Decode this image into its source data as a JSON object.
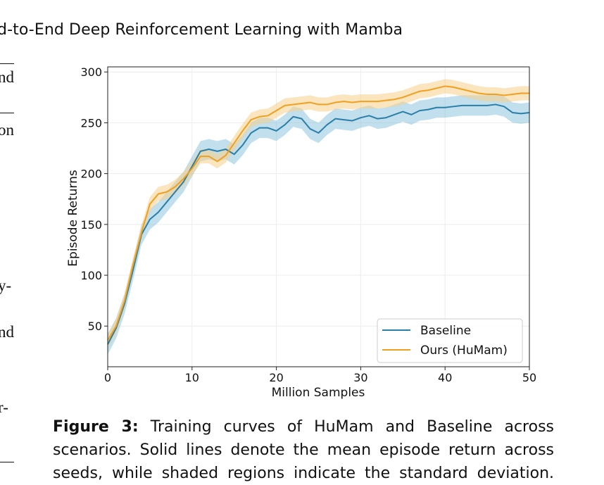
{
  "header": {
    "title": "d-to-End Deep Reinforcement Learning with Mamba"
  },
  "left_column_fragments": [
    "nd",
    "on",
    "y-",
    "nd",
    "r-"
  ],
  "chart_data": {
    "type": "line",
    "xlabel": "Million Samples",
    "ylabel": "Episode Returns",
    "xlim": [
      0,
      50
    ],
    "ylim": [
      10,
      305
    ],
    "xticks": [
      "0",
      "10",
      "20",
      "30",
      "40",
      "50"
    ],
    "yticks": [
      "50",
      "100",
      "150",
      "200",
      "250",
      "300"
    ],
    "grid": true,
    "legend_position": "lower-right",
    "x": [
      0,
      1,
      2,
      3,
      4,
      5,
      6,
      7,
      8,
      9,
      10,
      11,
      12,
      13,
      14,
      15,
      16,
      17,
      18,
      19,
      20,
      21,
      22,
      23,
      24,
      25,
      26,
      27,
      28,
      29,
      30,
      31,
      32,
      33,
      34,
      35,
      36,
      37,
      38,
      39,
      40,
      41,
      42,
      43,
      44,
      45,
      46,
      47,
      48,
      49,
      50
    ],
    "series": [
      {
        "name": "Baseline",
        "color": "#2a7fa8",
        "band_color": "#8ec4dc",
        "band_halfwidth": 10,
        "values": [
          32,
          48,
          72,
          105,
          140,
          155,
          162,
          172,
          182,
          192,
          207,
          222,
          224,
          222,
          224,
          219,
          228,
          240,
          245,
          245,
          242,
          248,
          256,
          254,
          244,
          240,
          248,
          254,
          253,
          252,
          255,
          257,
          254,
          255,
          258,
          261,
          258,
          262,
          263,
          265,
          265,
          266,
          267,
          267,
          267,
          267,
          268,
          266,
          260,
          259,
          260
        ]
      },
      {
        "name": "Ours (HuMam)",
        "color": "#f0a020",
        "band_color": "#f8cf8a",
        "band_halfwidth": 7,
        "values": [
          36,
          50,
          75,
          110,
          142,
          170,
          180,
          182,
          187,
          195,
          205,
          217,
          217,
          212,
          218,
          230,
          242,
          253,
          256,
          257,
          262,
          267,
          268,
          269,
          270,
          268,
          268,
          270,
          271,
          270,
          271,
          271,
          271,
          272,
          273,
          275,
          278,
          281,
          282,
          284,
          286,
          285,
          283,
          281,
          279,
          278,
          278,
          277,
          278,
          279,
          279
        ]
      }
    ]
  },
  "caption": {
    "label": "Figure 3:",
    "line1_rest": "Training curves of HuMam and Baseline across",
    "line2": "scenarios. Solid lines denote the mean episode return across",
    "line3": "seeds, while shaded regions indicate the standard deviation."
  }
}
